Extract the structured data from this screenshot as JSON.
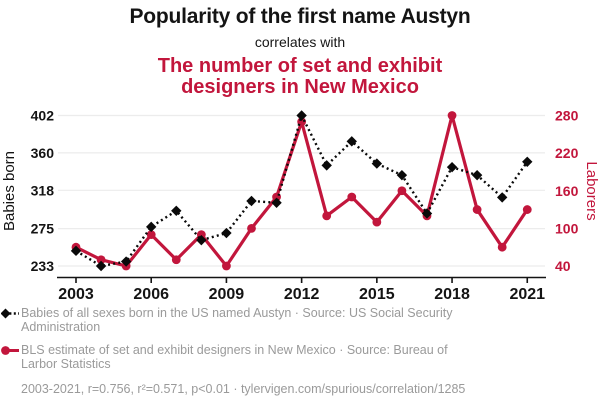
{
  "header": {
    "title": "Popularity of the first name Austyn",
    "connector": "correlates with",
    "subtitle": "The number of set and exhibit designers in New Mexico"
  },
  "colors": {
    "accent_red": "#c2163c",
    "series_black": "#0a0a0a",
    "text_black": "#141414",
    "legend_gray": "#9a9a9a",
    "gridline": "#ececec"
  },
  "chart_data": {
    "type": "line",
    "x": [
      2003,
      2004,
      2005,
      2006,
      2007,
      2008,
      2009,
      2010,
      2011,
      2012,
      2013,
      2014,
      2015,
      2016,
      2017,
      2018,
      2019,
      2020,
      2021
    ],
    "x_tick_labels": [
      "2003",
      "2006",
      "2009",
      "2012",
      "2015",
      "2018",
      "2021"
    ],
    "series": [
      {
        "name": "Babies of all sexes born in the US named Austyn",
        "axis": "left",
        "style": "dashed",
        "marker": "diamond",
        "color": "#0a0a0a",
        "values": [
          250,
          233,
          238,
          277,
          295,
          262,
          270,
          306,
          304,
          402,
          346,
          373,
          348,
          335,
          292,
          344,
          335,
          310,
          350
        ]
      },
      {
        "name": "BLS estimate of set and exhibit designers in New Mexico",
        "axis": "right",
        "style": "solid",
        "marker": "circle",
        "color": "#c2163c",
        "values": [
          70,
          50,
          40,
          90,
          50,
          90,
          40,
          100,
          150,
          270,
          120,
          150,
          110,
          160,
          120,
          280,
          130,
          70,
          130
        ]
      }
    ],
    "left_axis": {
      "label": "Babies born",
      "ticks": [
        233,
        275,
        318,
        360,
        402
      ],
      "range": [
        233,
        402
      ]
    },
    "right_axis": {
      "label": "Laborers",
      "ticks": [
        40,
        100,
        160,
        220,
        280
      ],
      "range": [
        40,
        280
      ]
    },
    "grid": "horizontal",
    "legend_position": "bottom"
  },
  "legend": {
    "items": [
      {
        "marker": "black-diamond-dashed",
        "text": "Babies of all sexes born in the US named Austyn · Source: US Social Security Administration"
      },
      {
        "marker": "red-circle-solid",
        "text": "BLS estimate of set and exhibit designers in New Mexico · Source: Bureau of Larbor Statistics"
      }
    ]
  },
  "footer": {
    "text": "2003-2021, r=0.756, r²=0.571, p<0.01 · tylervigen.com/spurious/correlation/1285"
  }
}
